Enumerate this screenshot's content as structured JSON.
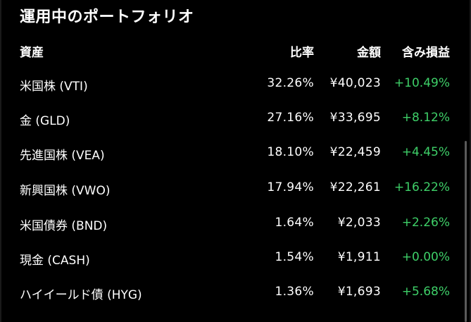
{
  "title": "運用中のポートフォリオ",
  "columns": {
    "asset": "資産",
    "ratio": "比率",
    "amount": "金額",
    "gain": "含み損益"
  },
  "rows": [
    {
      "asset": "米国株 (VTI)",
      "ratio": "32.26%",
      "amount": "¥40,023",
      "gain": "+10.49%"
    },
    {
      "asset": "金 (GLD)",
      "ratio": "27.16%",
      "amount": "¥33,695",
      "gain": "+8.12%"
    },
    {
      "asset": "先進国株 (VEA)",
      "ratio": "18.10%",
      "amount": "¥22,459",
      "gain": "+4.45%"
    },
    {
      "asset": "新興国株 (VWO)",
      "ratio": "17.94%",
      "amount": "¥22,261",
      "gain": "+16.22%"
    },
    {
      "asset": "米国債券 (BND)",
      "ratio": "1.64%",
      "amount": "¥2,033",
      "gain": "+2.26%"
    },
    {
      "asset": "現金 (CASH)",
      "ratio": "1.54%",
      "amount": "¥1,911",
      "gain": "+0.00%"
    },
    {
      "asset": "ハイイールド債 (HYG)",
      "ratio": "1.36%",
      "amount": "¥1,693",
      "gain": "+5.68%"
    }
  ],
  "colors": {
    "background": "#000000",
    "text": "#ffffff",
    "gain_positive": "#3ecf68"
  }
}
